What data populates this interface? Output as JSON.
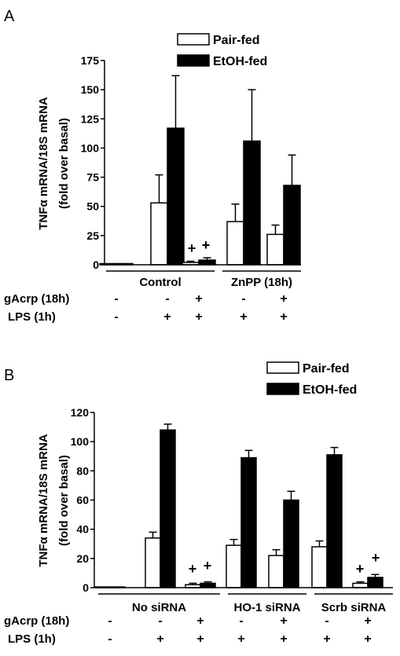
{
  "panels": [
    {
      "letter": "A",
      "ylabel_line1": "TNFα mRNA/18S mRNA",
      "ylabel_line2": "(fold over basal)",
      "legend": [
        "Pair-fed",
        "EtOH-fed"
      ],
      "groups": [
        "Control",
        "ZnPP (18h)"
      ],
      "rows": [
        {
          "label": "gAcrp (18h)",
          "signs": [
            "-",
            "-",
            "+",
            "-",
            "+"
          ]
        },
        {
          "label": "LPS (1h)",
          "signs": [
            "-",
            "+",
            "+",
            "+",
            "+"
          ]
        }
      ]
    },
    {
      "letter": "B",
      "ylabel_line1": "TNFα mRNA/18S mRNA",
      "ylabel_line2": "(fold over basal)",
      "legend": [
        "Pair-fed",
        "EtOH-fed"
      ],
      "groups": [
        "No siRNA",
        "HO-1 siRNA",
        "Scrb siRNA"
      ],
      "rows": [
        {
          "label": "gAcrp (18h)",
          "signs": [
            "-",
            "-",
            "+",
            "-",
            "+",
            "-",
            "+"
          ]
        },
        {
          "label": "LPS (1h)",
          "signs": [
            "-",
            "+",
            "+",
            "+",
            "+",
            "+",
            "+"
          ]
        }
      ]
    }
  ],
  "chart_data": [
    {
      "type": "bar",
      "ylim": [
        0,
        175
      ],
      "yticks": [
        0,
        25,
        50,
        75,
        100,
        125,
        150,
        175
      ],
      "categories": [
        "1",
        "2",
        "3",
        "4",
        "5"
      ],
      "series": [
        {
          "name": "Pair-fed",
          "color": "#ffffff",
          "values": [
            1,
            53,
            2,
            37,
            26
          ],
          "errors": [
            0,
            24,
            1,
            15,
            8
          ]
        },
        {
          "name": "EtOH-fed",
          "color": "#000000",
          "values": [
            1,
            117,
            4,
            106,
            68
          ],
          "errors": [
            0,
            45,
            2,
            44,
            26
          ]
        }
      ],
      "significance": [
        "",
        "",
        "+",
        "",
        ""
      ]
    },
    {
      "type": "bar",
      "ylim": [
        0,
        120
      ],
      "yticks": [
        0,
        20,
        40,
        60,
        80,
        100,
        120
      ],
      "categories": [
        "1",
        "2",
        "3",
        "4",
        "5",
        "6",
        "7"
      ],
      "series": [
        {
          "name": "Pair-fed",
          "color": "#ffffff",
          "values": [
            0.5,
            34,
            2,
            29,
            22,
            28,
            3
          ],
          "errors": [
            0,
            4,
            1,
            4,
            4,
            4,
            1
          ]
        },
        {
          "name": "EtOH-fed",
          "color": "#000000",
          "values": [
            0.5,
            108,
            3,
            89,
            60,
            91,
            7
          ],
          "errors": [
            0,
            4,
            1,
            5,
            6,
            5,
            2
          ]
        }
      ],
      "significance": [
        "",
        "",
        "+",
        "",
        "",
        "",
        "+"
      ]
    }
  ]
}
